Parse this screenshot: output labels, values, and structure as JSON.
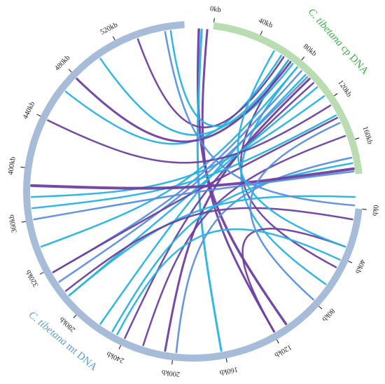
{
  "diagram": {
    "type": "circos-plot",
    "genomes": [
      {
        "id": "cp",
        "label_italic": "C. tibetana",
        "label_rest": " cp DNA",
        "color": "#b9dcb1",
        "label_color": "#3cae43",
        "ticks": [
          "0kb",
          "40kb",
          "80kb",
          "120kb",
          "160kb"
        ]
      },
      {
        "id": "mt",
        "label_italic": "C. tibetana",
        "label_rest": " mt DNA",
        "color": "#a6bcd8",
        "label_color": "#5b9bd5",
        "ticks": [
          "0kb",
          "40kb",
          "80kb",
          "120kb",
          "160kb",
          "200kb",
          "240kb",
          "280kb",
          "320kb",
          "360kb",
          "400kb",
          "440kb",
          "480kb",
          "520kb"
        ]
      }
    ],
    "link_colors": {
      "purple": "#6e3fa0",
      "cyan": "#26b3e3",
      "blue": "#5a8fe0"
    },
    "link_count": 33
  }
}
